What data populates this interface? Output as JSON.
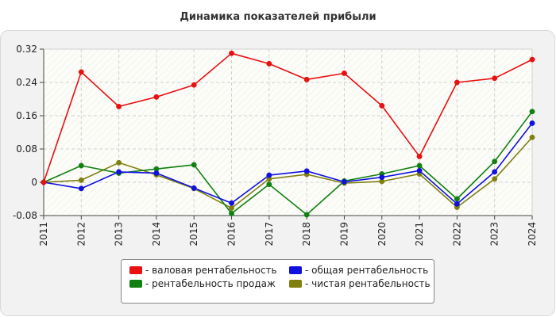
{
  "chart_data": {
    "type": "line",
    "title": "Динамика показателей прибыли",
    "xlabel": "",
    "ylabel": "",
    "categories": [
      "2011",
      "2012",
      "2013",
      "2014",
      "2015",
      "2016",
      "2017",
      "2018",
      "2019",
      "2020",
      "2021",
      "2022",
      "2023",
      "2024"
    ],
    "ylim": [
      -0.08,
      0.32
    ],
    "yticks": [
      -0.08,
      0,
      0.08,
      0.16,
      0.24,
      0.32
    ],
    "ytick_labels": [
      "-0.08",
      "0",
      "0.08",
      "0.16",
      "0.24",
      "0.32"
    ],
    "grid": true,
    "legend_position": "bottom",
    "series": [
      {
        "name": "валовая рентабельность",
        "color": "#e81010",
        "values": [
          0.0,
          0.265,
          0.182,
          0.205,
          0.234,
          0.31,
          0.285,
          0.247,
          0.262,
          0.184,
          0.062,
          0.24,
          0.25,
          0.295
        ]
      },
      {
        "name": "общая рентабельность",
        "color": "#1010e0",
        "values": [
          0.0,
          -0.015,
          0.025,
          0.022,
          -0.014,
          -0.05,
          0.017,
          0.027,
          0.001,
          0.012,
          0.028,
          -0.052,
          0.025,
          0.142
        ]
      },
      {
        "name": "рентабельность продаж",
        "color": "#108010",
        "values": [
          0.0,
          0.04,
          0.022,
          0.032,
          0.042,
          -0.075,
          -0.005,
          -0.078,
          0.003,
          0.02,
          0.04,
          -0.04,
          0.05,
          0.17
        ]
      },
      {
        "name": "чистая рентабельность",
        "color": "#808010",
        "values": [
          0.0,
          0.005,
          0.047,
          0.018,
          -0.015,
          -0.062,
          0.008,
          0.019,
          -0.002,
          0.002,
          0.02,
          -0.06,
          0.008,
          0.108
        ]
      }
    ]
  },
  "legend": {
    "prefix": "- "
  }
}
